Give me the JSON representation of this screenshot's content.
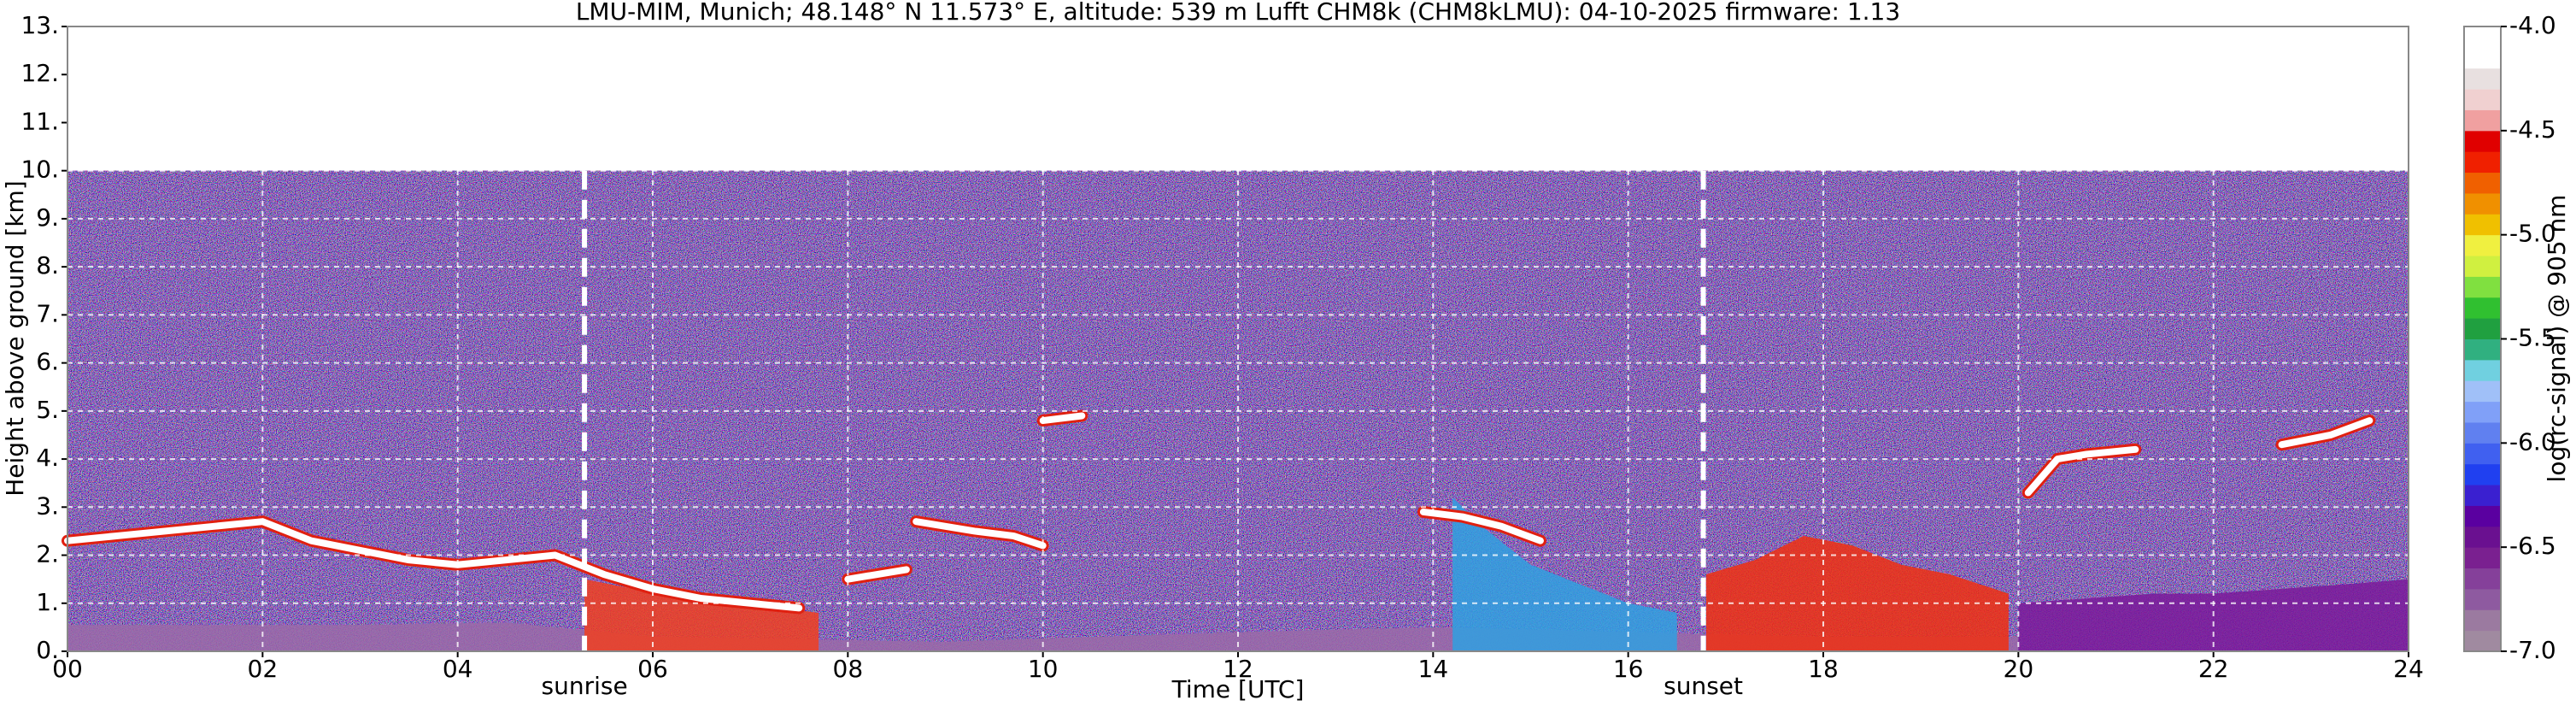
{
  "chart_data": {
    "type": "heatmap",
    "title": "LMU-MIM, Munich; 48.148° N 11.573° E, altitude: 539 m    Lufft CHM8k (CHM8kLMU): 04-10-2025    firmware: 1.13",
    "x_label": "Time [UTC]",
    "y_label": "Height above ground [km]",
    "xlim": [
      0,
      24
    ],
    "ylim": [
      0,
      13
    ],
    "xticks": [
      {
        "value": 0,
        "label": "00"
      },
      {
        "value": 2,
        "label": "02"
      },
      {
        "value": 4,
        "label": "04"
      },
      {
        "value": 6,
        "label": "06"
      },
      {
        "value": 8,
        "label": "08"
      },
      10,
      12,
      14,
      16,
      18,
      20,
      22,
      24
    ],
    "yticks": [
      {
        "value": 0,
        "label": "0."
      },
      {
        "value": 1,
        "label": "1."
      },
      {
        "value": 2,
        "label": "2."
      },
      {
        "value": 3,
        "label": "3."
      },
      {
        "value": 4,
        "label": "4."
      },
      {
        "value": 5,
        "label": "5."
      },
      {
        "value": 6,
        "label": "6."
      },
      {
        "value": 7,
        "label": "7."
      },
      {
        "value": 8,
        "label": "8."
      },
      {
        "value": 9,
        "label": "9."
      },
      {
        "value": 10,
        "label": "10."
      },
      {
        "value": 11,
        "label": "11."
      },
      {
        "value": 12,
        "label": "12."
      },
      {
        "value": 13,
        "label": "13."
      }
    ],
    "grid": true,
    "signal_top": 10,
    "annotations": [
      {
        "x": 5.3,
        "label": "sunrise"
      },
      {
        "x": 16.77,
        "label": "sunset"
      }
    ],
    "areas": [
      {
        "color": "#9a6aa8",
        "x": [
          0,
          3,
          4.5,
          6,
          9,
          12,
          14,
          16,
          18,
          20
        ],
        "values": [
          0.55,
          0.55,
          0.6,
          0.3,
          0.2,
          0.4,
          0.5,
          0.4,
          0.3,
          0.3
        ]
      },
      {
        "color": "#f04020",
        "x": [
          5.3,
          5.8,
          6.3,
          6.8,
          7.3,
          7.7
        ],
        "values": [
          1.5,
          1.3,
          1.1,
          1.0,
          0.9,
          0.8
        ]
      },
      {
        "color": "#30a0e0",
        "x": [
          14.2,
          14.5,
          15,
          15.5,
          16,
          16.5
        ],
        "values": [
          3.2,
          2.6,
          1.8,
          1.4,
          1.0,
          0.8
        ]
      },
      {
        "color": "#f03010",
        "x": [
          16.8,
          17.3,
          17.8,
          18.3,
          18.8,
          19.3,
          19.9
        ],
        "values": [
          1.6,
          1.9,
          2.4,
          2.2,
          1.8,
          1.6,
          1.2
        ]
      },
      {
        "color": "#7a1a9a",
        "x": [
          20,
          20.7,
          21.4,
          22,
          22.7,
          23.4,
          24
        ],
        "values": [
          1.0,
          1.1,
          1.2,
          1.2,
          1.3,
          1.4,
          1.5
        ]
      }
    ],
    "layers": [
      {
        "color": "#ffffff",
        "x": [
          0,
          0.5,
          1,
          1.5,
          2,
          2.5,
          3,
          3.5,
          4,
          4.5,
          5,
          5.5,
          6,
          6.5,
          7,
          7.5
        ],
        "values": [
          2.3,
          2.4,
          2.5,
          2.6,
          2.7,
          2.3,
          2.1,
          1.9,
          1.8,
          1.9,
          2.0,
          1.6,
          1.3,
          1.1,
          1.0,
          0.9
        ]
      },
      {
        "color": "#ffffff",
        "x": [
          8,
          8.6
        ],
        "values": [
          1.5,
          1.7
        ]
      },
      {
        "color": "#ffffff",
        "x": [
          8.7,
          9.3,
          9.7,
          10
        ],
        "values": [
          2.7,
          2.5,
          2.4,
          2.2
        ]
      },
      {
        "color": "#ffffff",
        "x": [
          10,
          10.4
        ],
        "values": [
          4.8,
          4.9
        ]
      },
      {
        "color": "#ffffff",
        "x": [
          13.9,
          14.3,
          14.7,
          15.1
        ],
        "values": [
          2.9,
          2.8,
          2.6,
          2.3
        ]
      },
      {
        "color": "#ffffff",
        "x": [
          20.1,
          20.4,
          20.7,
          21.2
        ],
        "values": [
          3.3,
          4.0,
          4.1,
          4.2
        ]
      },
      {
        "color": "#ffffff",
        "x": [
          22.7,
          23.2,
          23.6
        ],
        "values": [
          4.3,
          4.5,
          4.8
        ]
      }
    ],
    "colorbar": {
      "label": "log(rc-signal) @ 905 nm",
      "clim": [
        -7,
        -4
      ],
      "ticks": [
        {
          "value": -4,
          "label": "-4.0"
        },
        -4.5,
        {
          "value": -5,
          "label": "-5.0"
        },
        -5.5,
        {
          "value": -6,
          "label": "-6.0"
        },
        -6.5,
        {
          "value": -7,
          "label": "-7.0"
        }
      ],
      "colors": [
        "#a08aa0",
        "#9b7aa0",
        "#8e5aa0",
        "#85409a",
        "#7a2090",
        "#6a1090",
        "#5a00a0",
        "#3a20d0",
        "#2040f0",
        "#4060f0",
        "#6080f0",
        "#80a0f8",
        "#a0c0f8",
        "#70d0e0",
        "#30b080",
        "#20a040",
        "#30c030",
        "#80e040",
        "#d0f040",
        "#f0f040",
        "#f0c000",
        "#f09000",
        "#f06000",
        "#f02000",
        "#e00000",
        "#f0a0a0",
        "#f0d0d0",
        "#e8e0e0",
        "#ffffff",
        "#ffffff"
      ]
    }
  }
}
